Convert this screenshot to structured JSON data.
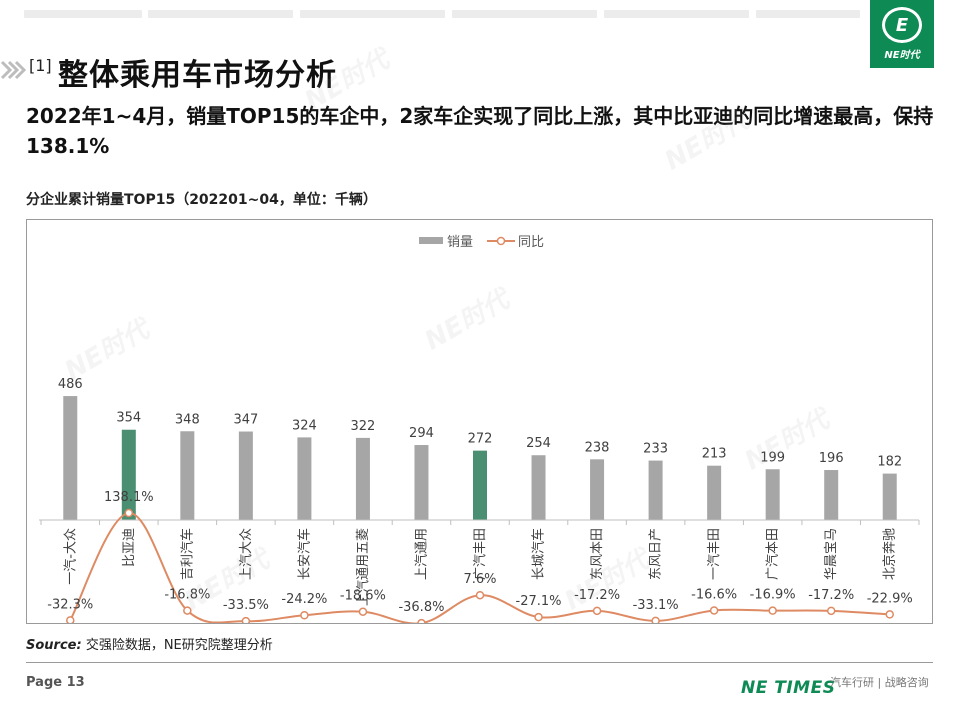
{
  "header": {
    "ref": "[1]",
    "title": "整体乘用车市场分析",
    "headline": "2022年1~4月，销量TOP15的车企中，2家车企实现了同比上涨，其中比亚迪的同比增速最高，保持138.1%"
  },
  "logo": {
    "text": "NE时代",
    "mark": "E"
  },
  "chart_caption": "分企业累计销量TOP15（202201~04，单位：千辆）",
  "chart_data": {
    "type": "bar",
    "categories": [
      "一汽-大众",
      "比亚迪",
      "吉利汽车",
      "上汽大众",
      "长安汽车",
      "上汽通用五菱",
      "上汽通用",
      "广汽丰田",
      "长城汽车",
      "东风本田",
      "东风日产",
      "一汽丰田",
      "广汽本田",
      "华晨宝马",
      "北京奔驰"
    ],
    "series": [
      {
        "name": "销量",
        "type": "bar",
        "values": [
          486,
          354,
          348,
          347,
          324,
          322,
          294,
          272,
          254,
          238,
          233,
          213,
          199,
          196,
          182
        ]
      },
      {
        "name": "同比",
        "type": "line",
        "values": [
          -32.3,
          138.1,
          -16.8,
          -33.5,
          -24.2,
          -18.6,
          -36.8,
          7.6,
          -27.1,
          -17.2,
          -33.1,
          -16.6,
          -16.9,
          -17.2,
          -22.9
        ]
      }
    ],
    "bar_value_labels": [
      "486",
      "354",
      "348",
      "347",
      "324",
      "322",
      "294",
      "272",
      "254",
      "238",
      "233",
      "213",
      "199",
      "196",
      "182"
    ],
    "line_value_labels": [
      "-32.3%",
      "138.1%",
      "-16.8%",
      "-33.5%",
      "-24.2%",
      "-18.6%",
      "-36.8%",
      "7.6%",
      "-27.1%",
      "-17.2%",
      "-33.1%",
      "-16.6%",
      "-16.9%",
      "-17.2%",
      "-22.9%"
    ],
    "highlighted_categories": [
      "比亚迪",
      "广汽丰田"
    ],
    "colors": {
      "bar": "#a6a6a6",
      "bar_highlight": "#4a8f72",
      "line": "#de8a63"
    },
    "legend_position": "top-center",
    "grid": false
  },
  "source": {
    "label": "Source:",
    "text": "交强险数据，NE研究院整理分析"
  },
  "footer": {
    "page": "Page 13",
    "brand": "NE TIMES",
    "tagline": "汽车行研 | 战略咨询"
  },
  "watermark": "NE时代"
}
